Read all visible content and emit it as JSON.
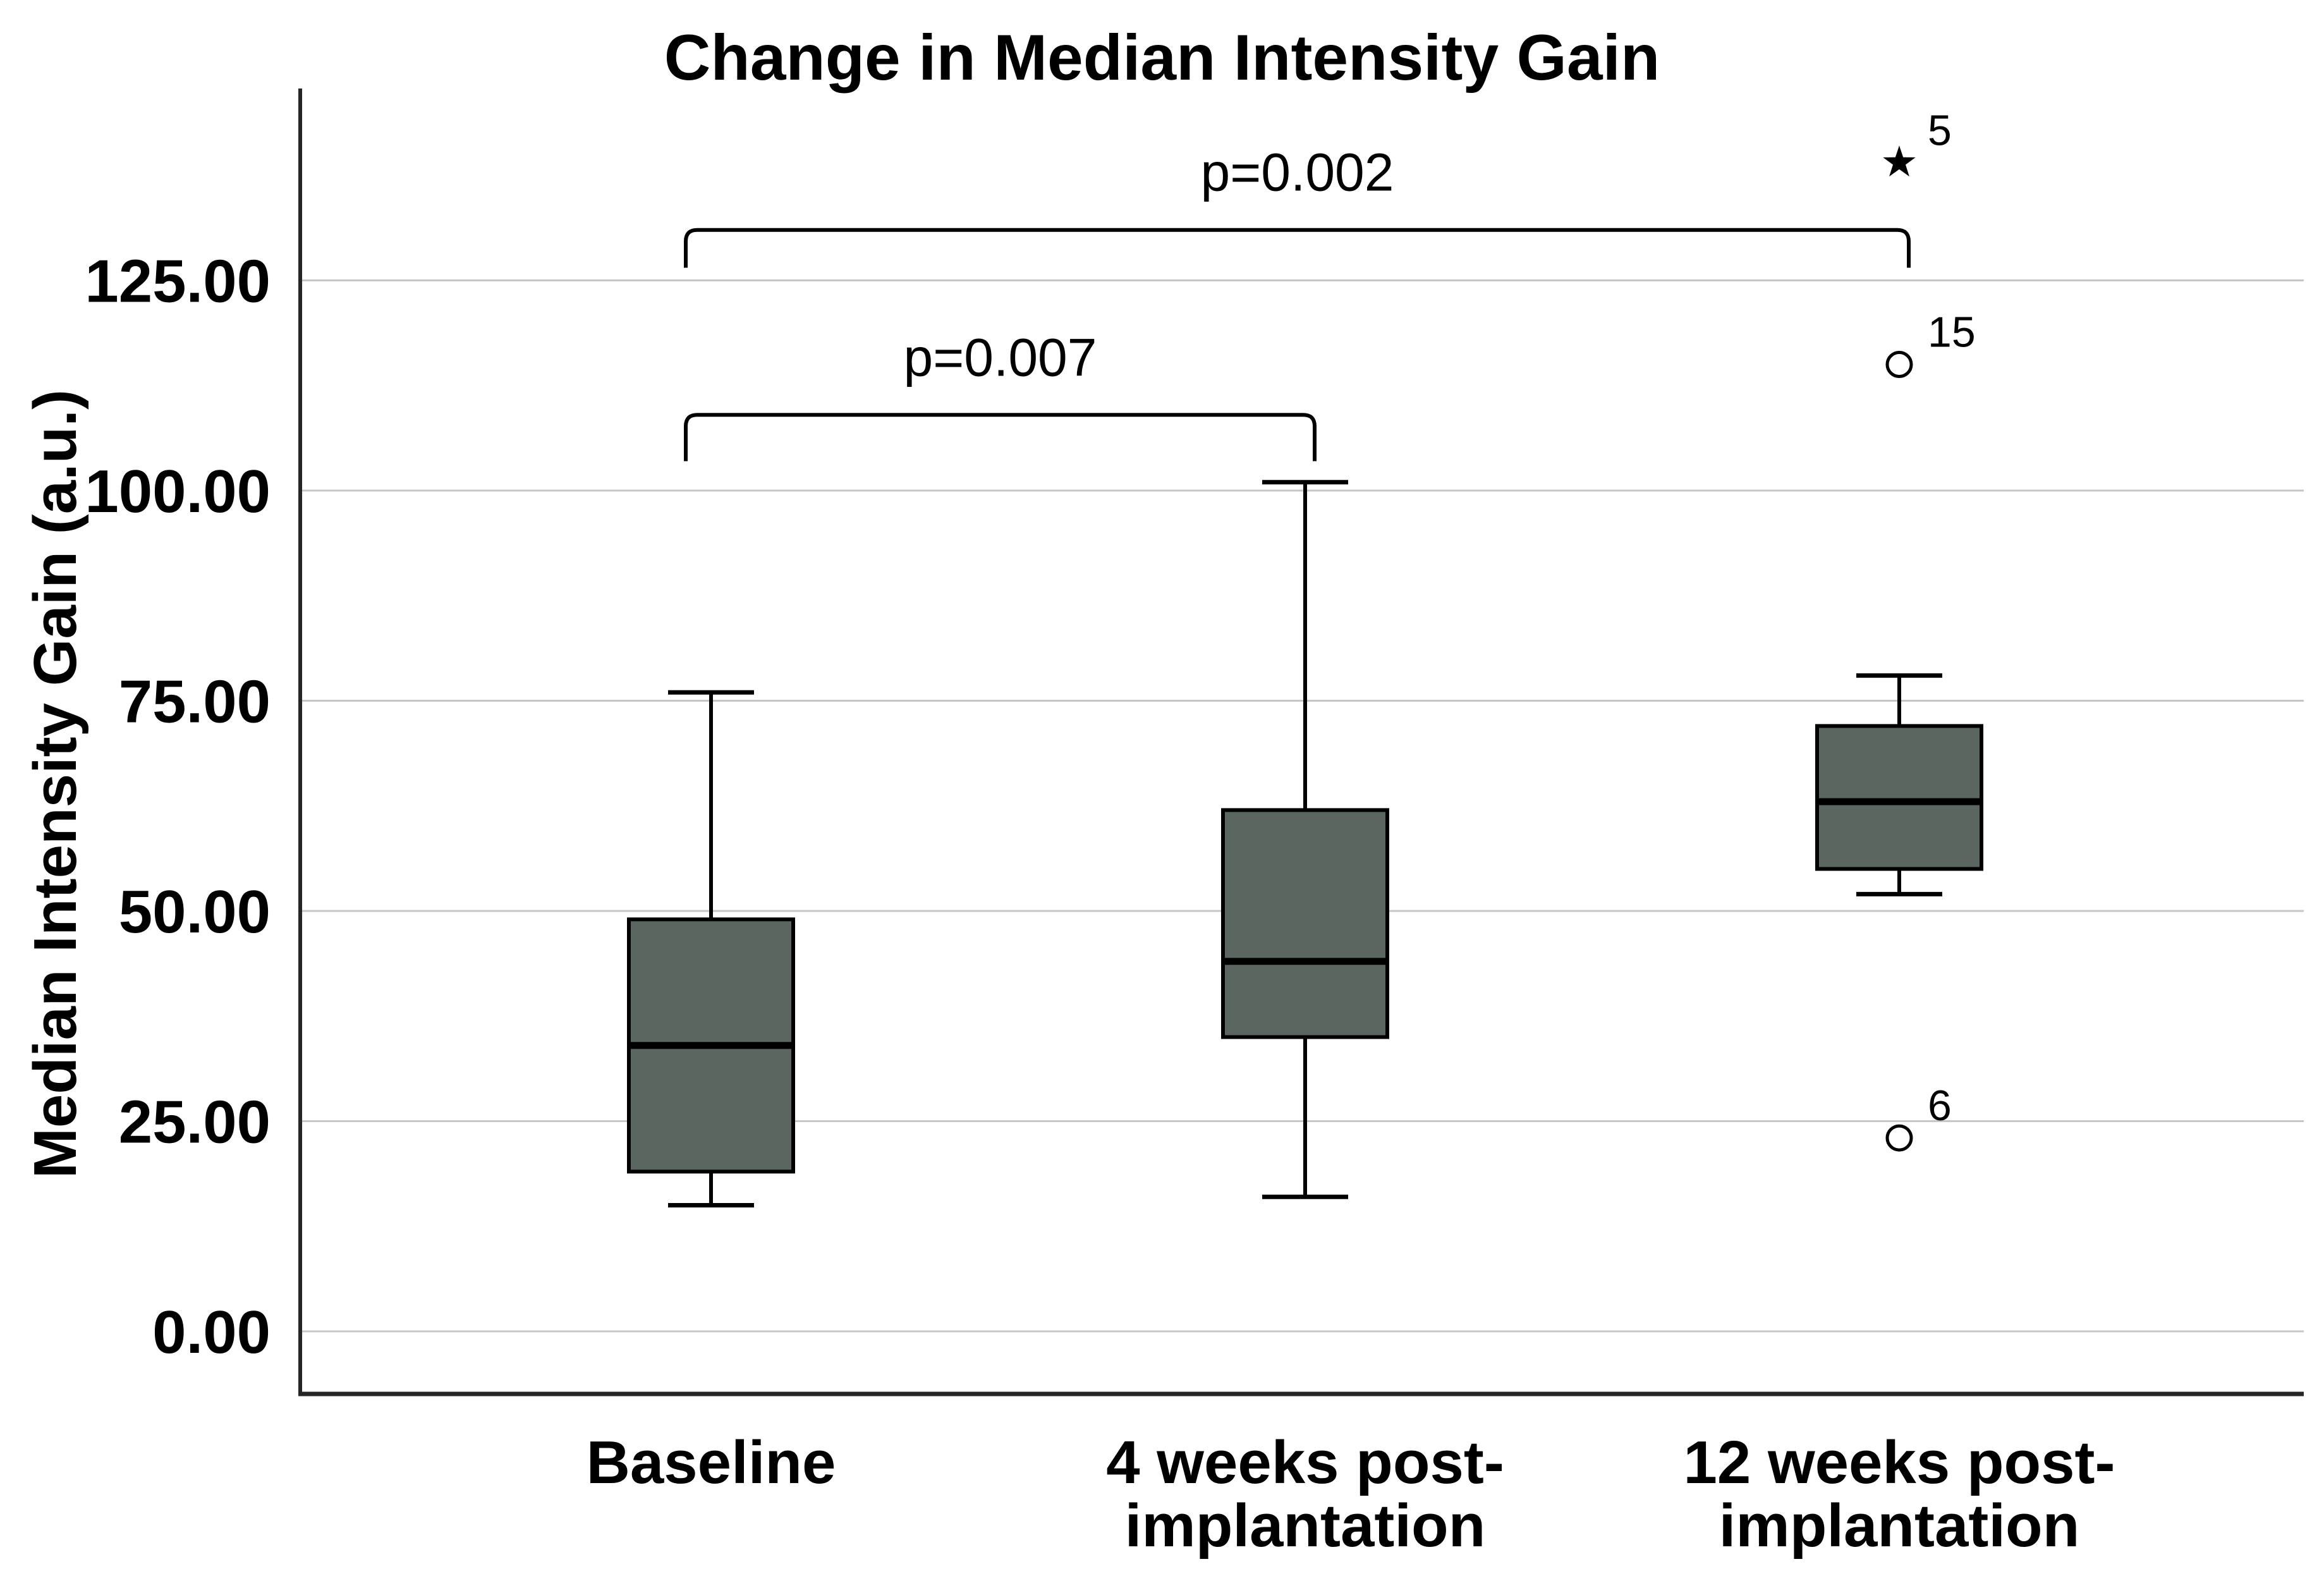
{
  "page": {
    "background": "#ffffff"
  },
  "title": "Change in Median Intensity Gain",
  "y_axis": {
    "label": "Median Intensity Gain (a.u.)",
    "tick_labels": [
      "0.00",
      "25.00",
      "50.00",
      "75.00",
      "100.00",
      "125.00"
    ]
  },
  "chart_data": {
    "type": "boxplot",
    "title": "Change in Median Intensity Gain",
    "xlabel": "",
    "ylabel": "Median Intensity Gain (a.u.)",
    "ylim": [
      -7.5,
      147.8
    ],
    "yticks": [
      0,
      25,
      50,
      75,
      100,
      125
    ],
    "ytick_labels": [
      "0.00",
      "25.00",
      "50.00",
      "75.00",
      "100.00",
      "125.00"
    ],
    "grid": true,
    "legend": "none",
    "categories": [
      "Baseline",
      "4 weeks post-\nimplantation",
      "12 weeks post-\nimplantation"
    ],
    "series": [
      {
        "category": "Baseline",
        "whisker_low": 15,
        "q1": 19,
        "median": 34,
        "q3": 49,
        "whisker_high": 76,
        "outliers": []
      },
      {
        "category": "4 weeks post-implantation",
        "whisker_low": 16,
        "q1": 35,
        "median": 44,
        "q3": 62,
        "whisker_high": 101,
        "outliers": []
      },
      {
        "category": "12 weeks post-implantation",
        "whisker_low": 52,
        "q1": 55,
        "median": 63,
        "q3": 72,
        "whisker_high": 78,
        "outliers": [
          {
            "value": 139,
            "label": "5",
            "marker": "star"
          },
          {
            "value": 115,
            "label": "15",
            "marker": "circle"
          },
          {
            "value": 23,
            "label": "6",
            "marker": "circle"
          }
        ]
      }
    ],
    "significance_brackets": [
      {
        "label": "p=0.007",
        "from": 0,
        "to": 1,
        "bar_value": 109,
        "tip_value": 103.5
      },
      {
        "label": "p=0.002",
        "from": 0,
        "to": 2,
        "bar_value": 131,
        "tip_value": 126.5
      }
    ],
    "colors": {
      "box_fill": "#5a665f",
      "box_border": "#000000",
      "median": "#000000",
      "whisker": "#000000",
      "grid": "#c7c7c7",
      "axis": "#262626",
      "text": "#000000"
    }
  }
}
